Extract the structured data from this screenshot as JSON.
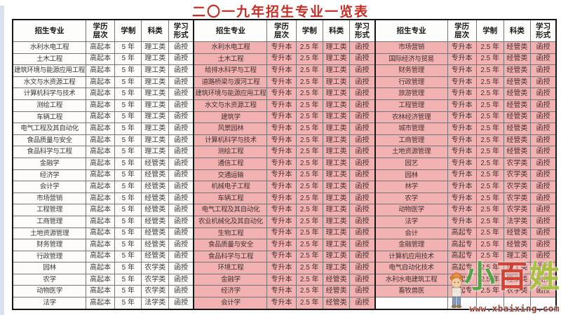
{
  "title": "二〇一九年招生专业一览表",
  "columns": [
    "招生专业",
    "学历层次",
    "学制",
    "科类",
    "学习形式"
  ],
  "sections": [
    {
      "id": "left",
      "bg": "#fdfcfa",
      "text_color": "#3b3b3b",
      "rows": [
        [
          "水利水电工程",
          "高起本",
          "5 年",
          "理工类",
          "函授"
        ],
        [
          "土木工程",
          "高起本",
          "5 年",
          "理工类",
          "函授"
        ],
        [
          "建筑环境与能源应用工程",
          "高起本",
          "5 年",
          "理工类",
          "函授"
        ],
        [
          "水文与水资源工程",
          "高起本",
          "5 年",
          "理工类",
          "函授"
        ],
        [
          "计算机科学与技术",
          "高起本",
          "5 年",
          "理工类",
          "函授"
        ],
        [
          "测绘工程",
          "高起本",
          "5 年",
          "理工类",
          "函授"
        ],
        [
          "车辆工程",
          "高起本",
          "5 年",
          "理工类",
          "函授"
        ],
        [
          "电气工程及其自动化",
          "高起本",
          "5 年",
          "理工类",
          "函授"
        ],
        [
          "食品质量与安全",
          "高起本",
          "5 年",
          "理工类",
          "函授"
        ],
        [
          "食品科学与工程",
          "高起本",
          "5 年",
          "理工类",
          "函授"
        ],
        [
          "金融学",
          "高起本",
          "5 年",
          "经管类",
          "函授"
        ],
        [
          "经济学",
          "高起本",
          "5 年",
          "经管类",
          "函授"
        ],
        [
          "会计学",
          "高起本",
          "5 年",
          "经管类",
          "函授"
        ],
        [
          "市场营销",
          "高起本",
          "5 年",
          "经管类",
          "函授"
        ],
        [
          "工程管理",
          "高起本",
          "5 年",
          "经管类",
          "函授"
        ],
        [
          "工商管理",
          "高起本",
          "5 年",
          "经管类",
          "函授"
        ],
        [
          "土地资源管理",
          "高起本",
          "5 年",
          "经管类",
          "函授"
        ],
        [
          "财务管理",
          "高起本",
          "5 年",
          "经管类",
          "函授"
        ],
        [
          "行政管理",
          "高起本",
          "5 年",
          "经管类",
          "函授"
        ],
        [
          "园林",
          "高起本",
          "5 年",
          "农学类",
          "函授"
        ],
        [
          "农学",
          "高起本",
          "5 年",
          "农学类",
          "函授"
        ],
        [
          "动物医学",
          "高起本",
          "5 年",
          "农学类",
          "函授"
        ],
        [
          "法学",
          "高起本",
          "5 年",
          "法学类",
          "函授"
        ]
      ]
    },
    {
      "id": "middle",
      "bg": "#f2b2b2",
      "text_color": "#44302f",
      "rows": [
        [
          "水利水电工程",
          "专升本",
          "2.5 年",
          "理工类",
          "函授"
        ],
        [
          "土木工程",
          "专升本",
          "2.5 年",
          "理工类",
          "函授"
        ],
        [
          "给排水科学与工程",
          "专升本",
          "2.5 年",
          "理工类",
          "函授"
        ],
        [
          "道路桥梁与渡河工程",
          "专升本",
          "2.5 年",
          "理工类",
          "函授"
        ],
        [
          "建筑环境与能源应用工程",
          "专升本",
          "2.5 年",
          "理工类",
          "函授"
        ],
        [
          "水文与水资源工程",
          "专升本",
          "2.5 年",
          "理工类",
          "函授"
        ],
        [
          "建筑学",
          "专升本",
          "2.5 年",
          "理工类",
          "函授"
        ],
        [
          "风景园林",
          "专升本",
          "2.5 年",
          "理工类",
          "函授"
        ],
        [
          "计算机科学与技术",
          "专升本",
          "2.5 年",
          "理工类",
          "函授"
        ],
        [
          "测绘工程",
          "专升本",
          "2.5 年",
          "理工类",
          "函授"
        ],
        [
          "通信工程",
          "专升本",
          "2.5 年",
          "理工类",
          "函授"
        ],
        [
          "交通运输",
          "专升本",
          "2.5 年",
          "理工类",
          "函授"
        ],
        [
          "机械电子工程",
          "专升本",
          "2.5 年",
          "理工类",
          "函授"
        ],
        [
          "车辆工程",
          "专升本",
          "2.5 年",
          "理工类",
          "函授"
        ],
        [
          "电气工程及其自动化",
          "专升本",
          "2.5 年",
          "理工类",
          "函授"
        ],
        [
          "农业机械化及其自动化",
          "专升本",
          "2.5 年",
          "理工类",
          "函授"
        ],
        [
          "生物工程",
          "专升本",
          "2.5 年",
          "理工类",
          "函授"
        ],
        [
          "食品质量与安全",
          "专升本",
          "2.5 年",
          "理工类",
          "函授"
        ],
        [
          "食品科学与工程",
          "专升本",
          "2.5 年",
          "理工类",
          "函授"
        ],
        [
          "环境工程",
          "专升本",
          "2.5 年",
          "理工类",
          "函授"
        ],
        [
          "金融学",
          "专升本",
          "2.5 年",
          "经管类",
          "函授"
        ],
        [
          "经济学",
          "专升本",
          "2.5 年",
          "经管类",
          "函授"
        ],
        [
          "会计学",
          "专升本",
          "2.5 年",
          "经管类",
          "函授"
        ]
      ]
    },
    {
      "id": "right",
      "bg": "#f2b2b2",
      "text_color": "#44302f",
      "rows": [
        [
          "市场营销",
          "专升本",
          "2.5 年",
          "经管类",
          "函授"
        ],
        [
          "国际经济与贸易",
          "专升本",
          "2.5 年",
          "经管类",
          "函授"
        ],
        [
          "财务管理",
          "专升本",
          "2.5 年",
          "经管类",
          "函授"
        ],
        [
          "行政管理",
          "专升本",
          "2.5 年",
          "经管类",
          "函授"
        ],
        [
          "旅游管理",
          "专升本",
          "2.5 年",
          "经管类",
          "函授"
        ],
        [
          "工程管理",
          "专升本",
          "2.5 年",
          "经管类",
          "函授"
        ],
        [
          "农林经济管理",
          "专升本",
          "2.5 年",
          "经管类",
          "函授"
        ],
        [
          "城市管理",
          "专升本",
          "2.5 年",
          "经管类",
          "函授"
        ],
        [
          "工商管理",
          "专升本",
          "2.5 年",
          "经管类",
          "函授"
        ],
        [
          "土地资源管理",
          "专升本",
          "2.5 年",
          "经管类",
          "函授"
        ],
        [
          "园艺",
          "专升本",
          "2.5 年",
          "农学类",
          "函授"
        ],
        [
          "园林",
          "专升本",
          "2.5 年",
          "农学类",
          "函授"
        ],
        [
          "林学",
          "专升本",
          "2.5 年",
          "农学类",
          "函授"
        ],
        [
          "农学",
          "专升本",
          "2.5 年",
          "农学类",
          "函授"
        ],
        [
          "动物医学",
          "专升本",
          "2.5 年",
          "农学类",
          "函授"
        ],
        [
          "法学",
          "专升本",
          "2.5 年",
          "法学类",
          "函授"
        ],
        [
          "会计",
          "高起专",
          "2.5 年",
          "经管类",
          "函授"
        ],
        [
          "金融管理",
          "高起专",
          "2.5 年",
          "经管类",
          "函授"
        ],
        [
          "计算机应用技术",
          "高起专",
          "2.5 年",
          "理工类",
          "函授"
        ],
        [
          "电气自动化技术",
          "高起专",
          "2.5 年",
          "理工类",
          "函授"
        ],
        [
          "水利水电建筑工程",
          "高起专",
          "2.5 年",
          "理工类",
          "函授"
        ],
        [
          "畜牧兽医",
          "高起专",
          "2.5 年",
          "农学类",
          "函授"
        ],
        [
          "",
          "",
          "",
          "",
          ""
        ]
      ]
    }
  ],
  "watermark": {
    "name": "小百姓",
    "chars": [
      {
        "text": "小",
        "color": "#4ba344"
      },
      {
        "text": "百",
        "color": "#d43b2c"
      },
      {
        "text": "姓",
        "color": "#a7c23c"
      }
    ],
    "url": "www.xbaixing.com",
    "url_color": "#8e2f28",
    "mascot_icon": "cartoon-boy-mascot"
  },
  "colors": {
    "title_red": "#c52f27",
    "pink_highlight": "#f2b2b2",
    "table_outer_border": "#161616",
    "cell_border": "#757575",
    "edge_strip_blue": "#cfdae7"
  }
}
